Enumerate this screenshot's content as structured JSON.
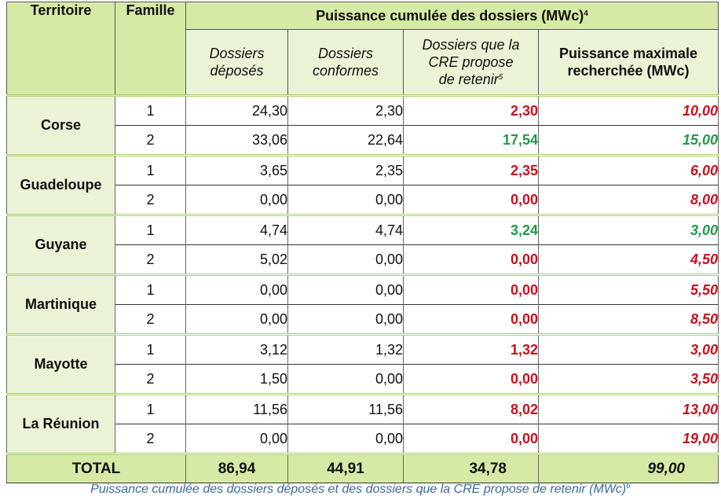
{
  "table": {
    "headers": {
      "territoire": "Territoire",
      "famille": "Famille",
      "group_title": "Puissance cumulée des dossiers (MWc)",
      "group_title_sup": "4",
      "deposes": "Dossiers déposés",
      "conformes": "Dossiers conformes",
      "cre_line1": "Dossiers que la",
      "cre_line2": "CRE propose",
      "cre_line3": "de retenir",
      "cre_sup": "5",
      "max_line1": "Puissance maximale",
      "max_line2": "recherchée (MWc)"
    },
    "territories": [
      {
        "name": "Corse",
        "rows": [
          {
            "famille": "1",
            "deposes": "24,30",
            "conformes": "2,30",
            "cre": "2,30",
            "cre_color": "red",
            "max": "10,00",
            "max_color": "red"
          },
          {
            "famille": "2",
            "deposes": "33,06",
            "conformes": "22,64",
            "cre": "17,54",
            "cre_color": "green",
            "max": "15,00",
            "max_color": "green"
          }
        ]
      },
      {
        "name": "Guadeloupe",
        "rows": [
          {
            "famille": "1",
            "deposes": "3,65",
            "conformes": "2,35",
            "cre": "2,35",
            "cre_color": "red",
            "max": "6,00",
            "max_color": "red"
          },
          {
            "famille": "2",
            "deposes": "0,00",
            "conformes": "0,00",
            "cre": "0,00",
            "cre_color": "red",
            "max": "8,00",
            "max_color": "red"
          }
        ]
      },
      {
        "name": "Guyane",
        "rows": [
          {
            "famille": "1",
            "deposes": "4,74",
            "conformes": "4,74",
            "cre": "3,24",
            "cre_color": "green",
            "max": "3,00",
            "max_color": "green"
          },
          {
            "famille": "2",
            "deposes": "5,02",
            "conformes": "0,00",
            "cre": "0,00",
            "cre_color": "red",
            "max": "4,50",
            "max_color": "red"
          }
        ]
      },
      {
        "name": "Martinique",
        "rows": [
          {
            "famille": "1",
            "deposes": "0,00",
            "conformes": "0,00",
            "cre": "0,00",
            "cre_color": "red",
            "max": "5,50",
            "max_color": "red"
          },
          {
            "famille": "2",
            "deposes": "0,00",
            "conformes": "0,00",
            "cre": "0,00",
            "cre_color": "red",
            "max": "8,50",
            "max_color": "red"
          }
        ]
      },
      {
        "name": "Mayotte",
        "rows": [
          {
            "famille": "1",
            "deposes": "3,12",
            "conformes": "1,32",
            "cre": "1,32",
            "cre_color": "red",
            "max": "3,00",
            "max_color": "red"
          },
          {
            "famille": "2",
            "deposes": "1,50",
            "conformes": "0,00",
            "cre": "0,00",
            "cre_color": "red",
            "max": "3,50",
            "max_color": "red"
          }
        ]
      },
      {
        "name": "La Réunion",
        "rows": [
          {
            "famille": "1",
            "deposes": "11,56",
            "conformes": "11,56",
            "cre": "8,02",
            "cre_color": "red",
            "max": "13,00",
            "max_color": "red"
          },
          {
            "famille": "2",
            "deposes": "0,00",
            "conformes": "0,00",
            "cre": "0,00",
            "cre_color": "red",
            "max": "19,00",
            "max_color": "red"
          }
        ]
      }
    ],
    "total": {
      "label": "TOTAL",
      "deposes": "86,94",
      "conformes": "44,91",
      "cre": "34,78",
      "max": "99,00"
    }
  },
  "caption": {
    "text": "Puissance cumulée des dossiers déposés et des dossiers que la CRE propose de retenir (MWc)",
    "sup": "6"
  },
  "colors": {
    "header_dark": "#d6eaa6",
    "header_light": "#ebf3d6",
    "red": "#c8101e",
    "green": "#1f9a4c",
    "caption": "#3a6a9a"
  }
}
